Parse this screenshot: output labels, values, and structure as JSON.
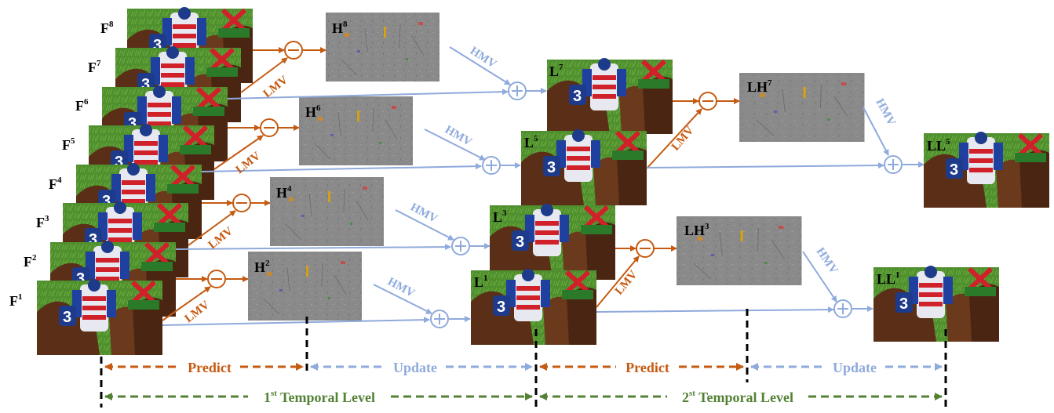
{
  "frames": [
    {
      "base": "F",
      "sup": "8"
    },
    {
      "base": "F",
      "sup": "7"
    },
    {
      "base": "F",
      "sup": "6"
    },
    {
      "base": "F",
      "sup": "5"
    },
    {
      "base": "F",
      "sup": "4"
    },
    {
      "base": "F",
      "sup": "3"
    },
    {
      "base": "F",
      "sup": "2"
    },
    {
      "base": "F",
      "sup": "1"
    }
  ],
  "high_bands": [
    {
      "base": "H",
      "sup": "8"
    },
    {
      "base": "H",
      "sup": "6"
    },
    {
      "base": "H",
      "sup": "4"
    },
    {
      "base": "H",
      "sup": "2"
    }
  ],
  "low_bands": [
    {
      "base": "L",
      "sup": "7"
    },
    {
      "base": "L",
      "sup": "5"
    },
    {
      "base": "L",
      "sup": "3"
    },
    {
      "base": "L",
      "sup": "1"
    }
  ],
  "level2_high": [
    {
      "base": "LH",
      "sup": "7"
    },
    {
      "base": "LH",
      "sup": "3"
    }
  ],
  "level2_low": [
    {
      "base": "LL",
      "sup": "5"
    },
    {
      "base": "LL",
      "sup": "1"
    }
  ],
  "motion_labels": {
    "lmv": "LMV",
    "hmv": "HMV"
  },
  "stages": {
    "predict": "Predict",
    "update": "Update"
  },
  "levels": {
    "first": {
      "num": "1",
      "sup": "st",
      "rest": " Temporal Level"
    },
    "second": {
      "num": "2",
      "sup": "st",
      "rest": " Temporal Level"
    }
  },
  "colors": {
    "predict": "#c55a11",
    "update": "#8faadc",
    "level": "#548235"
  }
}
